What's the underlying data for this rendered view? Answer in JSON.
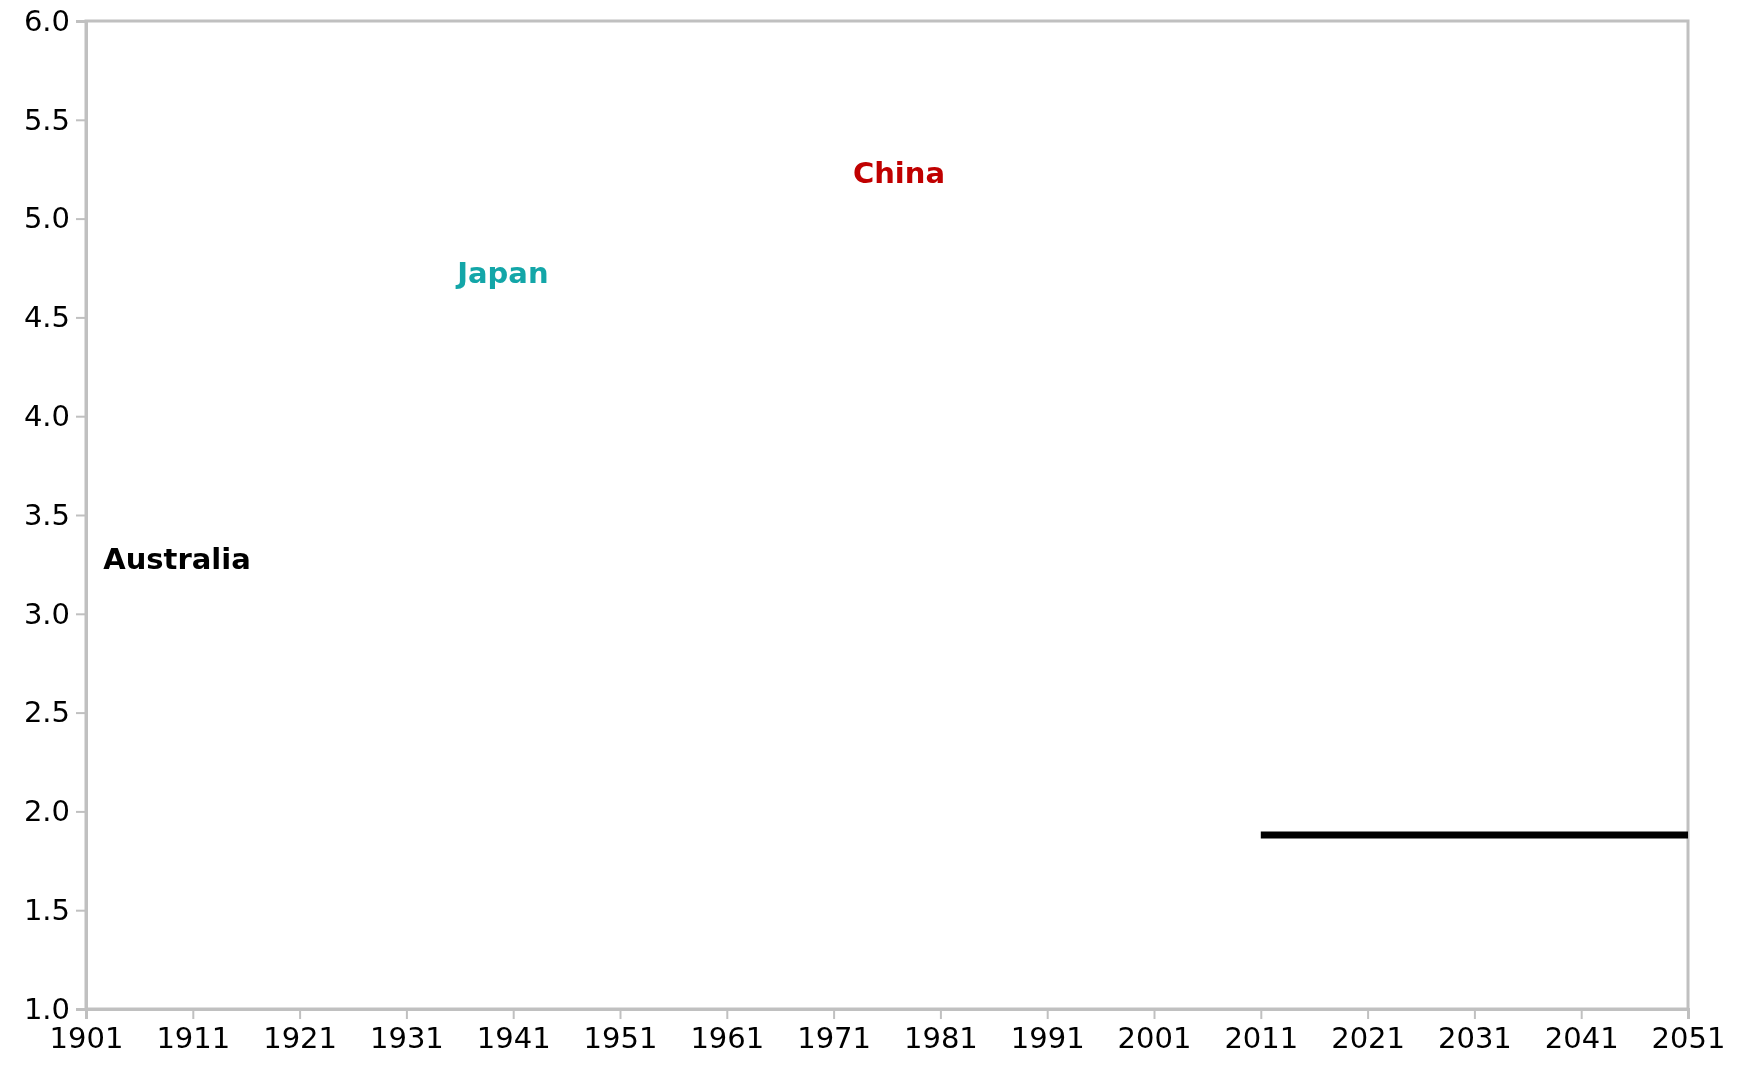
{
  "chart_data": {
    "type": "line",
    "x": [
      2011,
      2051
    ],
    "xlim": [
      1901,
      2051
    ],
    "xticks": [
      1901,
      1911,
      1921,
      1931,
      1941,
      1951,
      1961,
      1971,
      1981,
      1991,
      2001,
      2011,
      2021,
      2031,
      2041,
      2051
    ],
    "ylim": [
      1.0,
      6.0
    ],
    "yticks": [
      {
        "value": 1,
        "label": "1.0"
      },
      {
        "value": 1.5,
        "label": "1.5"
      },
      {
        "value": 2,
        "label": "2.0"
      },
      {
        "value": 2.5,
        "label": "2.5"
      },
      {
        "value": 3,
        "label": "3.0"
      },
      {
        "value": 3.5,
        "label": "3.5"
      },
      {
        "value": 4,
        "label": "4.0"
      },
      {
        "value": 4.5,
        "label": "4.5"
      },
      {
        "value": 5,
        "label": "5.0"
      },
      {
        "value": 5.5,
        "label": "5.5"
      },
      {
        "value": 6,
        "label": "6.0"
      }
    ],
    "grid": false,
    "legend": false,
    "series": [
      {
        "name": "Australia",
        "color": "#000000",
        "values": [
          1.88,
          1.88
        ]
      },
      {
        "name": "Japan",
        "color": "#13a6a8",
        "values": [
          null,
          null
        ]
      },
      {
        "name": "China",
        "color": "#c00000",
        "values": [
          null,
          null
        ]
      }
    ]
  }
}
